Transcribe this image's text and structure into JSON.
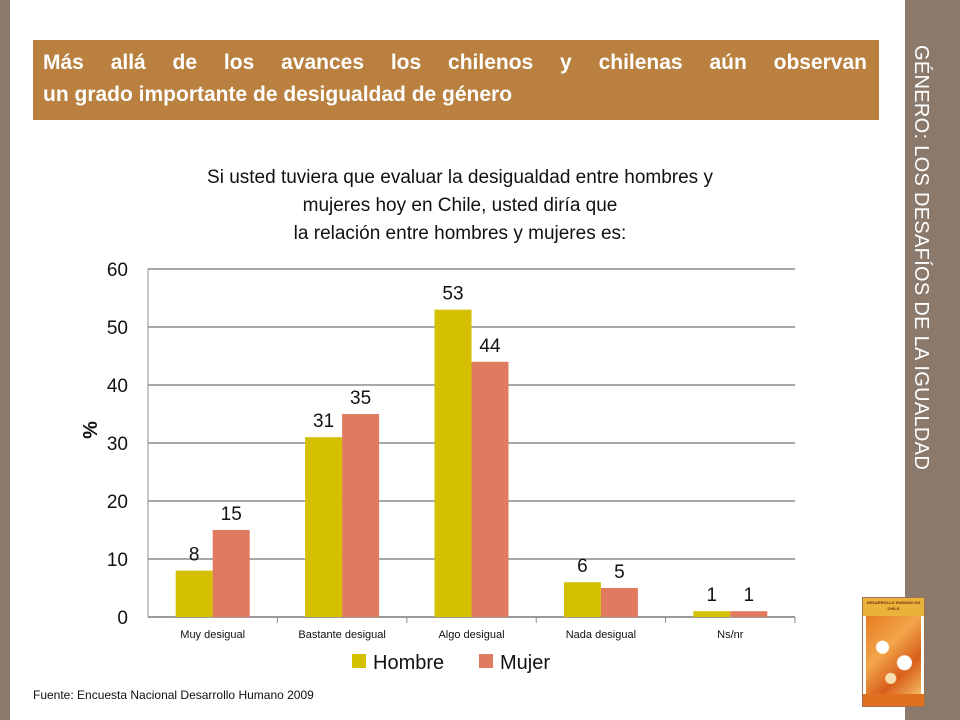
{
  "slide": {
    "side_title": "GÉNERO: LOS DESAFÍOS DE LA IGUALDAD",
    "headline_line1": "Más allá de los avances los chilenos y chilenas aún observan",
    "headline_line2": "un grado importante de desigualdad de género",
    "source": "Fuente: Encuesta Nacional Desarrollo Humano 2009",
    "cover_title": "DESARROLLO HUMANO EN CHILE",
    "colors": {
      "side_panel": "#8b7a6c",
      "headline_bg": "#b9803f",
      "hombre": "#d4c000",
      "mujer": "#e07b5f",
      "grid": "#888888"
    }
  },
  "chart_data": {
    "type": "bar",
    "title_lines": [
      "Si usted tuviera que evaluar la desigualdad entre hombres y",
      "mujeres hoy en Chile, usted diría que",
      "la relación entre hombres y mujeres es:"
    ],
    "ylabel": "%",
    "xlabel": "",
    "ylim": [
      0,
      60
    ],
    "yticks": [
      0,
      10,
      20,
      30,
      40,
      50,
      60
    ],
    "grid": true,
    "legend_position": "bottom",
    "categories": [
      "Muy desigual",
      "Bastante desigual",
      "Algo desigual",
      "Nada desigual",
      "Ns/nr"
    ],
    "series": [
      {
        "name": "Hombre",
        "color": "#d4c000",
        "values": [
          8,
          31,
          53,
          6,
          1
        ]
      },
      {
        "name": "Mujer",
        "color": "#e07b5f",
        "values": [
          15,
          35,
          44,
          5,
          1
        ]
      }
    ]
  }
}
